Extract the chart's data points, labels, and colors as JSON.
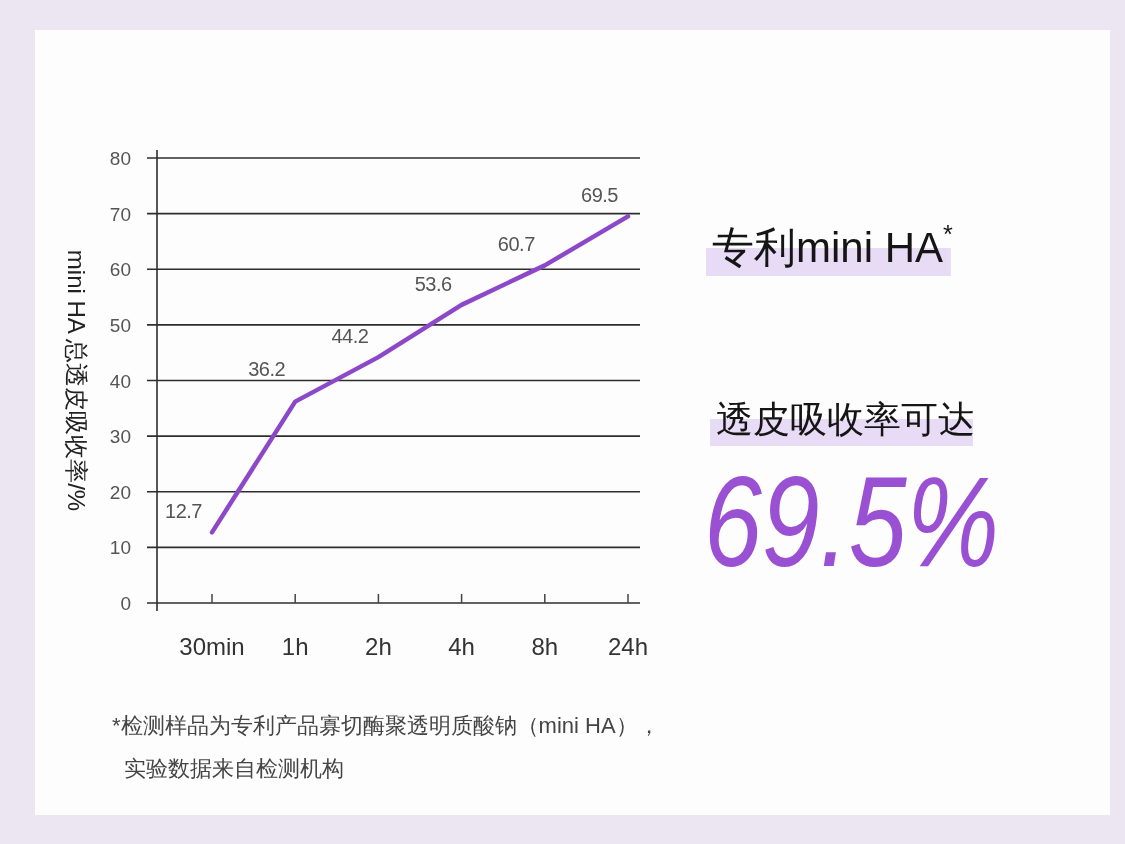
{
  "chart_data": {
    "type": "line",
    "categories": [
      "30min",
      "1h",
      "2h",
      "4h",
      "8h",
      "24h"
    ],
    "values": [
      12.7,
      36.2,
      44.2,
      53.6,
      60.7,
      69.5
    ],
    "color": "#8d47c9",
    "line_style": "solid",
    "data_labels": true,
    "ylabel": "mini HA 总透皮吸收率/%",
    "ylim": [
      0,
      80
    ],
    "yticks": [
      0,
      10,
      20,
      30,
      40,
      50,
      60,
      70,
      80
    ],
    "grid": "y",
    "annotations": [
      "专利mini HA$^{*}$",
      "透皮吸收率可达",
      "69.5%",
      "*检测样品为专利产品寡切酶聚透明质酸钠（mini HA），",
      "实验数据来自检测机构"
    ]
  }
}
